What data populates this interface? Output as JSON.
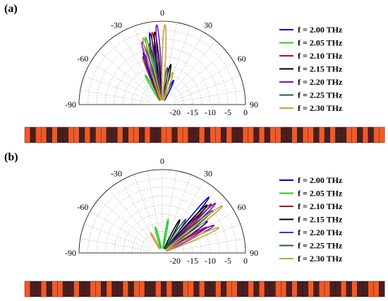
{
  "panels": [
    {
      "label": "(a)",
      "chart_data": {
        "type": "polar-line",
        "angular_ticks": [
          "-90",
          "-60",
          "-30",
          "0",
          "30",
          "60",
          "90"
        ],
        "radial_ticks": [
          "-20",
          "-15",
          "-10",
          "-5",
          "0"
        ],
        "radial_range": [
          -20,
          0
        ],
        "angular_range_deg": [
          -90,
          90
        ],
        "legend_position": "right",
        "series": [
          {
            "name": "f = 2.00 THz",
            "color": "#0000cc",
            "lobes": [
              {
                "angle": -10,
                "level": -3
              },
              {
                "angle": -20,
                "level": -8
              },
              {
                "angle": 25,
                "level": -16
              }
            ]
          },
          {
            "name": "f = 2.05 THz",
            "color": "#22cc22",
            "lobes": [
              {
                "angle": -14,
                "level": -4
              },
              {
                "angle": -30,
                "level": -14
              }
            ]
          },
          {
            "name": "f = 2.10 THz",
            "color": "#aa1a1a",
            "lobes": [
              {
                "angle": -8,
                "level": -3
              },
              {
                "angle": -22,
                "level": -9
              }
            ]
          },
          {
            "name": "f = 2.15 THz",
            "color": "#000000",
            "lobes": [
              {
                "angle": -6,
                "level": -3
              },
              {
                "angle": 12,
                "level": -12
              }
            ]
          },
          {
            "name": "f = 2.20 THz",
            "color": "#6a1acc",
            "lobes": [
              {
                "angle": -4,
                "level": -1
              },
              {
                "angle": -18,
                "level": -5
              }
            ]
          },
          {
            "name": "f = 2.25 THz",
            "color": "#2a5a50",
            "lobes": [
              {
                "angle": -12,
                "level": -6
              },
              {
                "angle": 8,
                "level": -13
              }
            ]
          },
          {
            "name": "f = 2.30 THz",
            "color": "#c8a040",
            "lobes": [
              {
                "angle": 2,
                "level": -1
              },
              {
                "angle": -16,
                "level": -4
              },
              {
                "angle": 18,
                "level": -14
              }
            ]
          }
        ]
      },
      "stripe_sequence": [
        1,
        0,
        1,
        1,
        0,
        1,
        0,
        0,
        1,
        1,
        0,
        1,
        0,
        1,
        1,
        0,
        0,
        1,
        0,
        1,
        1,
        0,
        1,
        0,
        0,
        1,
        1,
        0,
        1,
        1,
        0,
        0,
        1,
        0,
        1,
        1,
        0,
        1,
        0,
        0,
        1,
        1,
        0,
        1,
        0,
        1,
        1,
        0,
        0,
        1,
        0,
        1,
        1,
        0,
        1,
        0,
        1,
        0,
        0,
        1,
        1,
        0,
        1,
        0,
        1,
        1
      ]
    },
    {
      "label": "(b)",
      "chart_data": {
        "type": "polar-line",
        "angular_ticks": [
          "-90",
          "-60",
          "-30",
          "0",
          "30",
          "60",
          "90"
        ],
        "radial_ticks": [
          "-20",
          "-15",
          "-10",
          "-5",
          "0"
        ],
        "radial_range": [
          -20,
          0
        ],
        "angular_range_deg": [
          -90,
          90
        ],
        "legend_position": "right",
        "series": [
          {
            "name": "f = 2.00 THz",
            "color": "#0000cc",
            "lobes": [
              {
                "angle": 40,
                "level": -3
              },
              {
                "angle": 55,
                "level": -8
              }
            ]
          },
          {
            "name": "f = 2.05 THz",
            "color": "#22cc22",
            "lobes": [
              {
                "angle": 10,
                "level": -14
              },
              {
                "angle": -15,
                "level": -16
              }
            ]
          },
          {
            "name": "f = 2.10 THz",
            "color": "#aa1a1a",
            "lobes": [
              {
                "angle": 45,
                "level": -4
              },
              {
                "angle": 60,
                "level": -9
              }
            ]
          },
          {
            "name": "f = 2.15 THz",
            "color": "#000000",
            "lobes": [
              {
                "angle": 43,
                "level": -5
              },
              {
                "angle": 28,
                "level": -13
              }
            ]
          },
          {
            "name": "f = 2.20 THz",
            "color": "#6a1acc",
            "lobes": [
              {
                "angle": 47,
                "level": -3
              },
              {
                "angle": 62,
                "level": -7
              }
            ]
          },
          {
            "name": "f = 2.25 THz",
            "color": "#2a5a50",
            "lobes": [
              {
                "angle": 50,
                "level": -5
              },
              {
                "angle": 35,
                "level": -12
              }
            ]
          },
          {
            "name": "f = 2.30 THz",
            "color": "#c8a040",
            "lobes": [
              {
                "angle": 52,
                "level": -2
              },
              {
                "angle": 66,
                "level": -6
              },
              {
                "angle": -30,
                "level": -17
              }
            ]
          }
        ]
      },
      "stripe_sequence": [
        1,
        0,
        0,
        1,
        0,
        1,
        1,
        0,
        0,
        1,
        0,
        0,
        1,
        1,
        0,
        1,
        0,
        0,
        1,
        0,
        1,
        1,
        0,
        0,
        1,
        0,
        1,
        0,
        0,
        1,
        1,
        0,
        1,
        0,
        0,
        1,
        0,
        1,
        1,
        0,
        0,
        1,
        0,
        1,
        0,
        0,
        1,
        1,
        0,
        1,
        0,
        0,
        1,
        0,
        1,
        1,
        0,
        0,
        1,
        0,
        1,
        0,
        0,
        1,
        1,
        0
      ]
    }
  ],
  "colors": {
    "stripe_on": "#f05a28",
    "stripe_off": "#4a1f1f",
    "stripe_border": "#2a0e0e",
    "grid": "#999999"
  }
}
